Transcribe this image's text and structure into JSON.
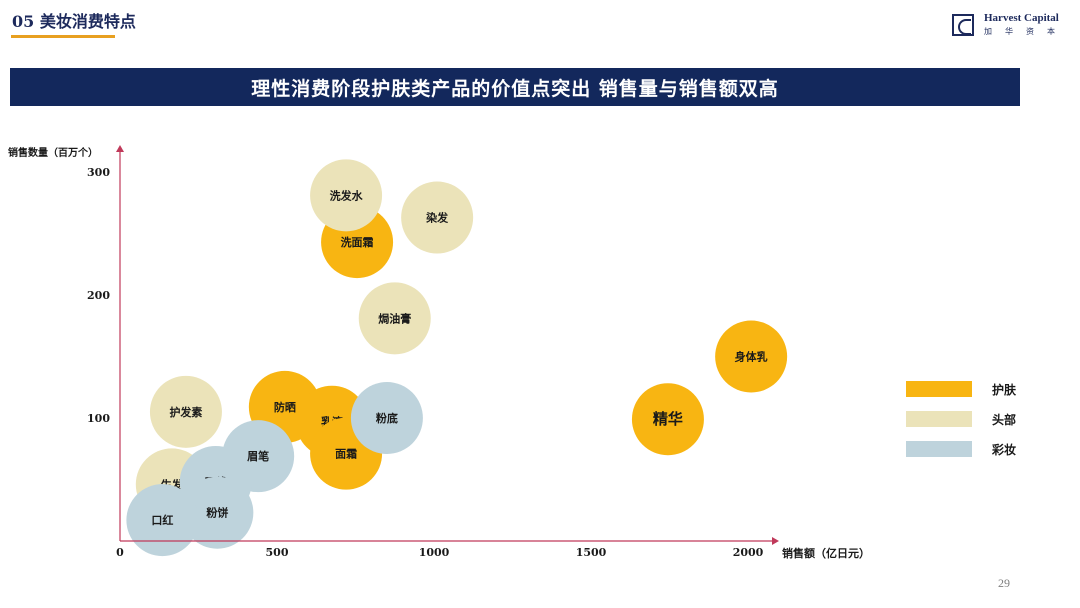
{
  "header": {
    "section_title": "05 美妆消费特点",
    "logo_en": "Harvest Capital",
    "logo_cn": "加华资本"
  },
  "banner": {
    "text": "理性消费阶段护肤类产品的价值点突出 销售量与销售额双高"
  },
  "page_number": "29",
  "colors": {
    "skincare": "#f8b512",
    "hair": "#ebe3b9",
    "makeup": "#bed3dc",
    "navy": "#13285c",
    "axis": "#c0395a",
    "accent": "#e8a020"
  },
  "chart_data": {
    "type": "bubble",
    "ylabel": "销售数量（百万个）",
    "xlabel": "销售额（亿日元）",
    "xlim": [
      0,
      2050
    ],
    "ylim": [
      0,
      300
    ],
    "x_ticks": [
      "0",
      "500",
      "1000",
      "1500",
      "2000"
    ],
    "y_ticks": [
      "100",
      "200",
      "300"
    ],
    "legend_position": "right",
    "series": [
      {
        "name": "护肤",
        "color_key": "skincare",
        "points": [
          {
            "label": "洗面霜",
            "x": 755,
            "y": 243
          },
          {
            "label": "防晒",
            "x": 525,
            "y": 109
          },
          {
            "label": "乳液",
            "x": 675,
            "y": 97
          },
          {
            "label": "面霜",
            "x": 720,
            "y": 71
          },
          {
            "label": "精华",
            "x": 1745,
            "y": 99
          },
          {
            "label": "身体乳",
            "x": 2010,
            "y": 150
          }
        ]
      },
      {
        "name": "头部",
        "color_key": "hair",
        "points": [
          {
            "label": "洗发水",
            "x": 720,
            "y": 281
          },
          {
            "label": "染发",
            "x": 1010,
            "y": 263
          },
          {
            "label": "焗油膏",
            "x": 875,
            "y": 181
          },
          {
            "label": "护发素",
            "x": 210,
            "y": 105
          },
          {
            "label": "生发",
            "x": 165,
            "y": 46
          }
        ]
      },
      {
        "name": "彩妆",
        "color_key": "makeup",
        "points": [
          {
            "label": "粉底",
            "x": 850,
            "y": 100
          },
          {
            "label": "眉笔",
            "x": 440,
            "y": 69
          },
          {
            "label": "眼线",
            "x": 305,
            "y": 48
          },
          {
            "label": "粉饼",
            "x": 310,
            "y": 23
          },
          {
            "label": "口红",
            "x": 135,
            "y": 17
          }
        ]
      }
    ]
  }
}
